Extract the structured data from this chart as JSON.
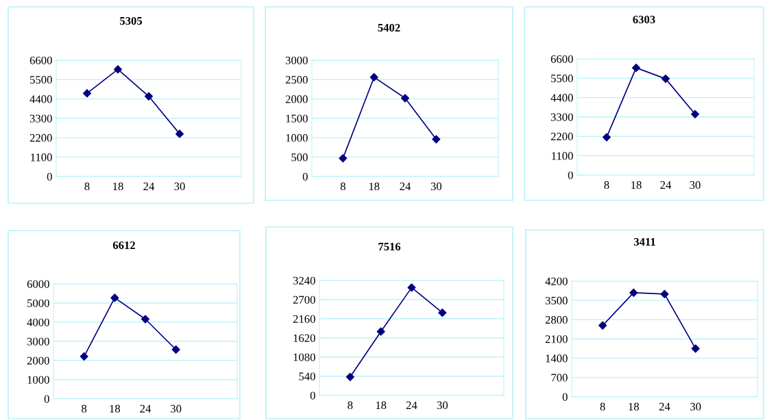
{
  "chart_data": [
    {
      "type": "line",
      "title": "5305",
      "categories": [
        "8",
        "18",
        "24",
        "30"
      ],
      "series": [
        {
          "color": "#000080",
          "values": [
            4720,
            6080,
            4550,
            2420
          ]
        }
      ],
      "ylim": [
        0,
        6600
      ],
      "yticks": [
        0,
        1100,
        2200,
        3300,
        4400,
        5500,
        6600
      ],
      "grid": "y",
      "marker": "diamond"
    },
    {
      "type": "line",
      "title": "5402",
      "categories": [
        "8",
        "18",
        "24",
        "30"
      ],
      "series": [
        {
          "color": "#000080",
          "values": [
            470,
            2560,
            2020,
            960
          ]
        }
      ],
      "ylim": [
        0,
        3000
      ],
      "yticks": [
        0,
        500,
        1000,
        1500,
        2000,
        2500,
        3000
      ],
      "grid": "y",
      "marker": "diamond"
    },
    {
      "type": "line",
      "title": "6303",
      "categories": [
        "8",
        "18",
        "24",
        "30"
      ],
      "series": [
        {
          "color": "#000080",
          "values": [
            2150,
            6090,
            5470,
            3460
          ]
        }
      ],
      "ylim": [
        0,
        6600
      ],
      "yticks": [
        0,
        1100,
        2200,
        3300,
        4400,
        5500,
        6600
      ],
      "grid": "y",
      "marker": "diamond"
    },
    {
      "type": "line",
      "title": "6612",
      "categories": [
        "8",
        "18",
        "24",
        "30"
      ],
      "series": [
        {
          "color": "#000080",
          "values": [
            2210,
            5270,
            4160,
            2570
          ]
        }
      ],
      "ylim": [
        0,
        6000
      ],
      "yticks": [
        0,
        1000,
        2000,
        3000,
        4000,
        5000,
        6000
      ],
      "grid": "y",
      "marker": "diamond"
    },
    {
      "type": "line",
      "title": "7516",
      "categories": [
        "8",
        "18",
        "24",
        "30"
      ],
      "series": [
        {
          "color": "#000080",
          "values": [
            520,
            1800,
            3040,
            2330
          ]
        }
      ],
      "ylim": [
        0,
        3240
      ],
      "yticks": [
        0,
        540,
        1080,
        1620,
        2160,
        2700,
        3240
      ],
      "grid": "y",
      "marker": "diamond"
    },
    {
      "type": "line",
      "title": "3411",
      "categories": [
        "8",
        "18",
        "24",
        "30"
      ],
      "series": [
        {
          "color": "#000080",
          "values": [
            2590,
            3780,
            3730,
            1750
          ]
        }
      ],
      "ylim": [
        0,
        4200
      ],
      "yticks": [
        0,
        700,
        1400,
        2100,
        2800,
        3500,
        4200
      ],
      "grid": "y",
      "marker": "diamond"
    }
  ]
}
